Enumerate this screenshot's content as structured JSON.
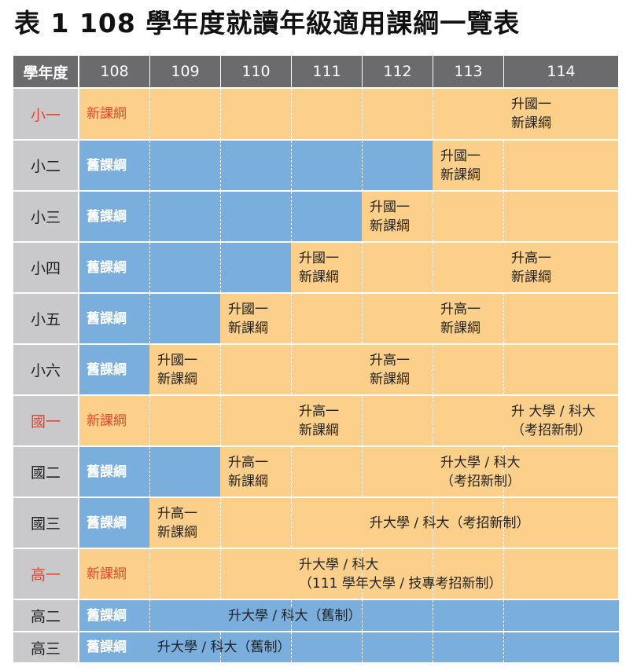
{
  "title": "表 1  108 學年度就讀年級適用課綱一覽表",
  "header": {
    "first": "學年度",
    "years": [
      "108",
      "109",
      "110",
      "111",
      "112",
      "113",
      "114"
    ]
  },
  "colors": {
    "header_bg": "#6b6b6d",
    "label_bg": "#c9c9cb",
    "new_curriculum": "#fcd08a",
    "old_curriculum": "#7aaedc",
    "highlight_text": "#e8452d"
  },
  "rows": [
    {
      "label": "小一",
      "red": true,
      "blue_until_year_index": 0,
      "cells": [
        {
          "start_year_index": 0,
          "lines": [
            "新課綱"
          ],
          "style": "red"
        },
        {
          "start_year_index": 6,
          "lines": [
            "升國一",
            "新課綱"
          ],
          "style": "dark"
        }
      ]
    },
    {
      "label": "小二",
      "red": false,
      "blue_until_year_index": 5,
      "cells": [
        {
          "start_year_index": 0,
          "lines": [
            "舊課綱"
          ],
          "style": "white"
        },
        {
          "start_year_index": 5,
          "lines": [
            "升國一",
            "新課綱"
          ],
          "style": "dark"
        }
      ]
    },
    {
      "label": "小三",
      "red": false,
      "blue_until_year_index": 4,
      "cells": [
        {
          "start_year_index": 0,
          "lines": [
            "舊課綱"
          ],
          "style": "white"
        },
        {
          "start_year_index": 4,
          "lines": [
            "升國一",
            "新課綱"
          ],
          "style": "dark"
        }
      ]
    },
    {
      "label": "小四",
      "red": false,
      "blue_until_year_index": 3,
      "cells": [
        {
          "start_year_index": 0,
          "lines": [
            "舊課綱"
          ],
          "style": "white"
        },
        {
          "start_year_index": 3,
          "lines": [
            "升國一",
            "新課綱"
          ],
          "style": "dark"
        },
        {
          "start_year_index": 6,
          "lines": [
            "升高一",
            "新課綱"
          ],
          "style": "dark"
        }
      ]
    },
    {
      "label": "小五",
      "red": false,
      "blue_until_year_index": 2,
      "cells": [
        {
          "start_year_index": 0,
          "lines": [
            "舊課綱"
          ],
          "style": "white"
        },
        {
          "start_year_index": 2,
          "lines": [
            "升國一",
            "新課綱"
          ],
          "style": "dark"
        },
        {
          "start_year_index": 5,
          "lines": [
            "升高一",
            "新課綱"
          ],
          "style": "dark"
        }
      ]
    },
    {
      "label": "小六",
      "red": false,
      "blue_until_year_index": 1,
      "cells": [
        {
          "start_year_index": 0,
          "lines": [
            "舊課綱"
          ],
          "style": "white"
        },
        {
          "start_year_index": 1,
          "lines": [
            "升國一",
            "新課綱"
          ],
          "style": "dark"
        },
        {
          "start_year_index": 4,
          "lines": [
            "升高一",
            "新課綱"
          ],
          "style": "dark"
        }
      ]
    },
    {
      "label": "國一",
      "red": true,
      "blue_until_year_index": 0,
      "cells": [
        {
          "start_year_index": 0,
          "lines": [
            "新課綱"
          ],
          "style": "red"
        },
        {
          "start_year_index": 3,
          "lines": [
            "升高一",
            "新課綱"
          ],
          "style": "dark"
        },
        {
          "start_year_index": 6,
          "lines": [
            "升 大學 / 科大",
            "（考招新制）"
          ],
          "style": "dark"
        }
      ]
    },
    {
      "label": "國二",
      "red": false,
      "blue_until_year_index": 2,
      "cells": [
        {
          "start_year_index": 0,
          "lines": [
            "舊課綱"
          ],
          "style": "white"
        },
        {
          "start_year_index": 2,
          "lines": [
            "升高一",
            "新課綱"
          ],
          "style": "dark"
        },
        {
          "start_year_index": 5,
          "lines": [
            "升大學 / 科大",
            "（考招新制）"
          ],
          "style": "dark"
        }
      ]
    },
    {
      "label": "國三",
      "red": false,
      "blue_until_year_index": 1,
      "cells": [
        {
          "start_year_index": 0,
          "lines": [
            "舊課綱"
          ],
          "style": "white"
        },
        {
          "start_year_index": 1,
          "lines": [
            "升高一",
            "新課綱"
          ],
          "style": "dark"
        },
        {
          "start_year_index": 4,
          "lines": [
            "升大學 / 科大（考招新制）"
          ],
          "style": "dark"
        }
      ]
    },
    {
      "label": "高一",
      "red": true,
      "blue_until_year_index": 0,
      "cells": [
        {
          "start_year_index": 0,
          "lines": [
            "新課綱"
          ],
          "style": "red"
        },
        {
          "start_year_index": 3,
          "lines": [
            "升大學 / 科大",
            "（111 學年大學 / 技專考招新制）"
          ],
          "style": "dark"
        }
      ]
    },
    {
      "label": "高二",
      "red": false,
      "blue_until_year_index": 7,
      "cells": [
        {
          "start_year_index": 0,
          "lines": [
            "舊課綱"
          ],
          "style": "white"
        },
        {
          "start_year_index": 2,
          "lines": [
            "升大學 / 科大（舊制）"
          ],
          "style": "dark"
        }
      ]
    },
    {
      "label": "高三",
      "red": false,
      "blue_until_year_index": 7,
      "cells": [
        {
          "start_year_index": 0,
          "lines": [
            "舊課綱"
          ],
          "style": "white"
        },
        {
          "start_year_index": 1,
          "lines": [
            "升大學 / 科大（舊制）"
          ],
          "style": "dark"
        }
      ]
    }
  ]
}
